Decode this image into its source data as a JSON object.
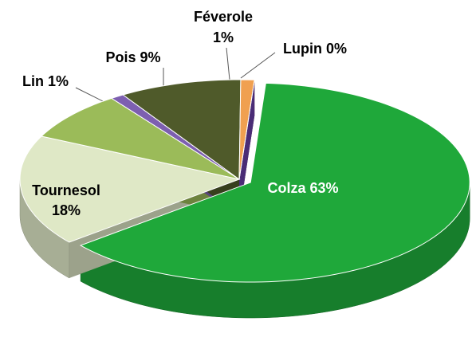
{
  "chart_data": {
    "type": "pie3d",
    "categories": [
      "Colza",
      "Tournesol",
      null,
      "Lin",
      "Pois",
      "Féverole",
      "Lupin"
    ],
    "values": [
      63,
      18,
      8,
      1,
      9,
      1,
      0
    ],
    "value_labels": [
      "63%",
      "18%",
      null,
      "1%",
      "9%",
      "1%",
      "0%"
    ],
    "colors": [
      "#1fa83a",
      "#dfe8c6",
      "#9bbb59",
      "#7d5fb0",
      "#4f5a2a",
      "#f0a050",
      "#6a3fa8"
    ]
  }
}
